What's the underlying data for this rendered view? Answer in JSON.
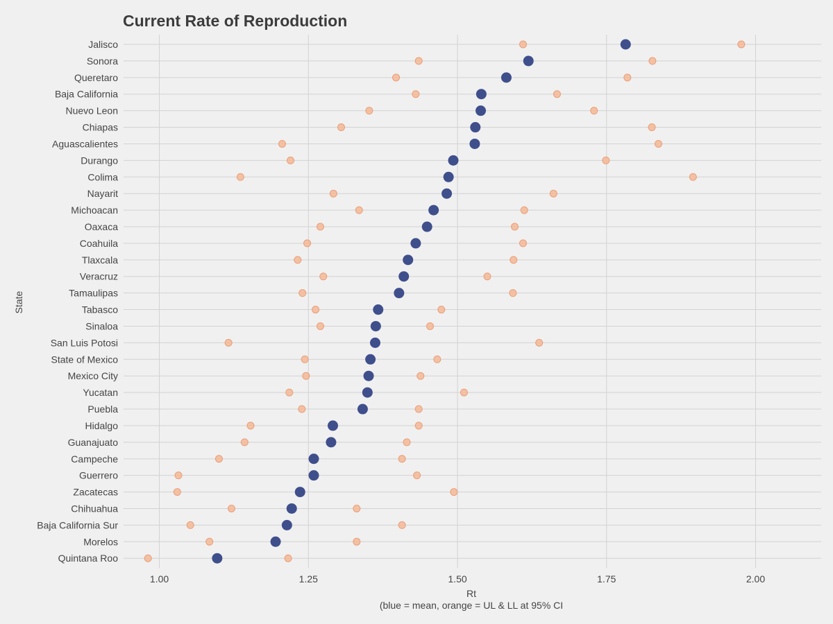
{
  "chart_data": {
    "type": "scatter",
    "title": "Current Rate of Reproduction",
    "xlabel": "Rt",
    "xlabel_note": "(blue = mean, orange = UL & LL at 95% CI",
    "ylabel": "State",
    "xlim": [
      0.94,
      2.11
    ],
    "x_ticks": [
      "1.00",
      "1.25",
      "1.50",
      "1.75",
      "2.00"
    ],
    "grid": true,
    "colors": {
      "mean": "#3f4f8c",
      "interval": "#f4b896",
      "interval_stroke": "#e99e78",
      "background": "#f0f0f0",
      "grid": "#d2d2d2",
      "text": "#444444"
    },
    "categories": [
      "Jalisco",
      "Sonora",
      "Queretaro",
      "Baja California",
      "Nuevo Leon",
      "Chiapas",
      "Aguascalientes",
      "Durango",
      "Colima",
      "Nayarit",
      "Michoacan",
      "Oaxaca",
      "Coahuila",
      "Tlaxcala",
      "Veracruz",
      "Tamaulipas",
      "Tabasco",
      "Sinaloa",
      "San Luis Potosi",
      "State of Mexico",
      "Mexico City",
      "Yucatan",
      "Puebla",
      "Hidalgo",
      "Guanajuato",
      "Campeche",
      "Guerrero",
      "Zacatecas",
      "Chihuahua",
      "Baja California Sur",
      "Morelos",
      "Quintana Roo"
    ],
    "series": [
      {
        "key": "lower",
        "values": [
          1.61,
          1.435,
          1.397,
          1.43,
          1.352,
          1.305,
          1.206,
          1.22,
          1.136,
          1.292,
          1.335,
          1.27,
          1.248,
          1.232,
          1.275,
          1.24,
          1.262,
          1.27,
          1.116,
          1.244,
          1.246,
          1.218,
          1.239,
          1.153,
          1.143,
          1.1,
          1.032,
          1.03,
          1.121,
          1.052,
          1.084,
          0.981
        ]
      },
      {
        "key": "mean",
        "values": [
          1.782,
          1.619,
          1.582,
          1.54,
          1.539,
          1.53,
          1.529,
          1.493,
          1.485,
          1.482,
          1.46,
          1.449,
          1.43,
          1.417,
          1.41,
          1.402,
          1.367,
          1.363,
          1.362,
          1.354,
          1.351,
          1.349,
          1.341,
          1.291,
          1.288,
          1.259,
          1.259,
          1.236,
          1.222,
          1.214,
          1.195,
          1.097
        ]
      },
      {
        "key": "upper",
        "values": [
          1.976,
          1.827,
          1.785,
          1.667,
          1.729,
          1.826,
          1.837,
          1.749,
          1.895,
          1.661,
          1.612,
          1.596,
          1.61,
          1.594,
          1.55,
          1.593,
          1.473,
          1.454,
          1.637,
          1.466,
          1.438,
          1.511,
          1.435,
          1.435,
          1.415,
          1.407,
          1.432,
          1.494,
          1.331,
          1.407,
          1.331,
          1.216
        ]
      }
    ]
  }
}
